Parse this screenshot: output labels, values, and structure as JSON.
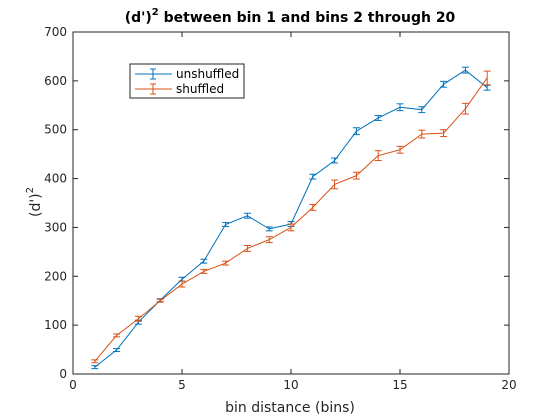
{
  "chart_data": {
    "type": "line",
    "title": {
      "main": "(d')",
      "superscript": "2",
      "rest": " between bin 1 and bins 2 through 20"
    },
    "xlabel": "bin distance (bins)",
    "ylabel": {
      "main": "(d')",
      "superscript": "2"
    },
    "xlim": [
      0,
      20
    ],
    "ylim": [
      0,
      700
    ],
    "xticks": [
      0,
      5,
      10,
      15,
      20
    ],
    "yticks": [
      0,
      100,
      200,
      300,
      400,
      500,
      600,
      700
    ],
    "grid": false,
    "legend_position": "top-left",
    "x": [
      1,
      2,
      3,
      4,
      5,
      6,
      7,
      8,
      9,
      10,
      11,
      12,
      13,
      14,
      15,
      16,
      17,
      18,
      19
    ],
    "series": [
      {
        "name": "unshuffled",
        "color": "#0072bd",
        "values": [
          14,
          49,
          106,
          151,
          194,
          231,
          306,
          324,
          297,
          307,
          404,
          437,
          497,
          524,
          546,
          541,
          593,
          622,
          586
        ],
        "errors": [
          3,
          3,
          4,
          3,
          4,
          4,
          4,
          5,
          4,
          5,
          5,
          5,
          7,
          5,
          7,
          6,
          6,
          6,
          5
        ]
      },
      {
        "name": "shuffled",
        "color": "#d95319",
        "values": [
          26,
          79,
          113,
          150,
          184,
          210,
          227,
          257,
          275,
          300,
          341,
          388,
          406,
          447,
          459,
          491,
          493,
          543,
          606
        ],
        "errors": [
          3,
          3,
          5,
          3,
          6,
          4,
          4,
          6,
          6,
          7,
          6,
          9,
          7,
          10,
          7,
          8,
          7,
          11,
          14
        ]
      }
    ]
  }
}
